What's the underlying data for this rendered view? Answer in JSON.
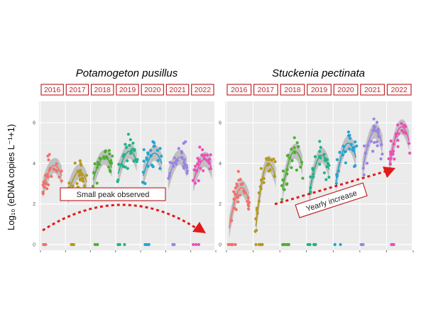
{
  "figure": {
    "y_axis_label": "Log₁₀ (eDNA copies L⁻¹+1)"
  },
  "chart_data": [
    {
      "type": "scatter",
      "title": "Potamogeton pusillus",
      "xlabel": "",
      "ylabel": "Log10 (eDNA copies L-1+1)",
      "ylim": [
        0,
        6.6
      ],
      "yticks": [
        "0",
        "2",
        "4",
        "6"
      ],
      "grid": true,
      "categories": [
        "2016",
        "2017",
        "2018",
        "2019",
        "2020",
        "2021",
        "2022"
      ],
      "season_peak_values": [
        3.9,
        3.6,
        4.3,
        4.6,
        4.5,
        4.3,
        4.2
      ],
      "series": [
        {
          "name": "2016",
          "color": "#f0736b"
        },
        {
          "name": "2017",
          "color": "#b49a1f"
        },
        {
          "name": "2018",
          "color": "#4fae33"
        },
        {
          "name": "2019",
          "color": "#22b38a"
        },
        {
          "name": "2020",
          "color": "#23a4d2"
        },
        {
          "name": "2021",
          "color": "#9b82e6"
        },
        {
          "name": "2022",
          "color": "#eb4fb6"
        }
      ],
      "annotation": {
        "text": "Small peak observed",
        "arrow": "arc"
      }
    },
    {
      "type": "scatter",
      "title": "Stuckenia pectinata",
      "xlabel": "",
      "ylabel": "Log10 (eDNA copies L-1+1)",
      "ylim": [
        0,
        6.6
      ],
      "yticks": [
        "0",
        "2",
        "4",
        "6"
      ],
      "grid": true,
      "categories": [
        "2016",
        "2017",
        "2018",
        "2019",
        "2020",
        "2021",
        "2022"
      ],
      "season_peak_values": [
        2.8,
        4.0,
        4.6,
        4.4,
        5.0,
        5.6,
        5.8
      ],
      "series": [
        {
          "name": "2016",
          "color": "#f0736b"
        },
        {
          "name": "2017",
          "color": "#b49a1f"
        },
        {
          "name": "2018",
          "color": "#4fae33"
        },
        {
          "name": "2019",
          "color": "#22b38a"
        },
        {
          "name": "2020",
          "color": "#23a4d2"
        },
        {
          "name": "2021",
          "color": "#9b82e6"
        },
        {
          "name": "2022",
          "color": "#eb4fb6"
        }
      ],
      "annotation": {
        "text": "Yearly increase",
        "arrow": "rising"
      }
    }
  ]
}
